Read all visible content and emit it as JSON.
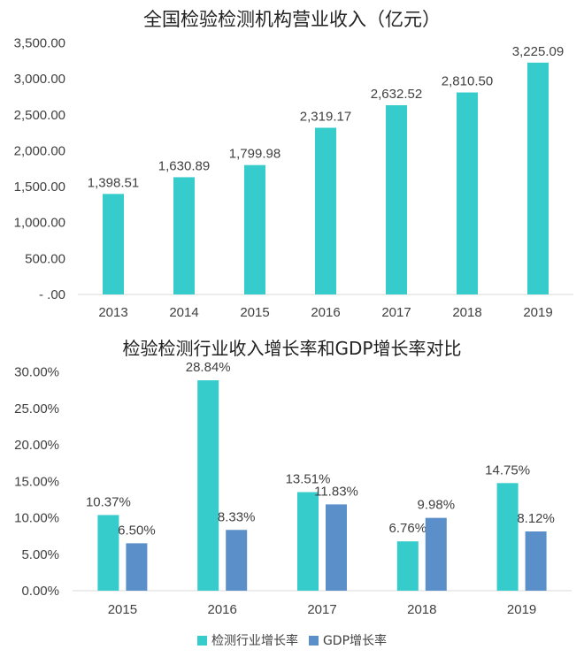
{
  "chart_data": [
    {
      "type": "bar",
      "title": "全国检验检测机构营业收入（亿元）",
      "categories": [
        "2013",
        "2014",
        "2015",
        "2016",
        "2017",
        "2018",
        "2019"
      ],
      "values": [
        1398.51,
        1630.89,
        1799.98,
        2319.17,
        2632.52,
        2810.5,
        3225.09
      ],
      "value_labels": [
        "1,398.51",
        "1,630.89",
        "1,799.98",
        "2,319.17",
        "2,632.52",
        "2,810.50",
        "3,225.09"
      ],
      "ylim": [
        0,
        3500
      ],
      "yticks": [
        0,
        500,
        1000,
        1500,
        2000,
        2500,
        3000,
        3500
      ],
      "ytick_labels": [
        "- .00",
        "500.00",
        "1,000.00",
        "1,500.00",
        "2,000.00",
        "2,500.00",
        "3,000.00",
        "3,500.00"
      ],
      "grid": false,
      "color": "#36CCCB"
    },
    {
      "type": "bar",
      "title": "检验检测行业收入增长率和GDP增长率对比",
      "categories": [
        "2015",
        "2016",
        "2017",
        "2018",
        "2019"
      ],
      "series": [
        {
          "name": "检测行业增长率",
          "color": "#36CCCB",
          "values": [
            10.37,
            28.84,
            13.51,
            6.76,
            14.75
          ],
          "value_labels": [
            "10.37%",
            "28.84%",
            "13.51%",
            "6.76%",
            "14.75%"
          ]
        },
        {
          "name": "GDP增长率",
          "color": "#5B8FC9",
          "values": [
            6.5,
            8.33,
            11.83,
            9.98,
            8.12
          ],
          "value_labels": [
            "6.50%",
            "8.33%",
            "11.83%",
            "9.98%",
            "8.12%"
          ]
        }
      ],
      "ylim": [
        0,
        30
      ],
      "yticks": [
        0,
        5,
        10,
        15,
        20,
        25,
        30
      ],
      "ytick_labels": [
        "0.00%",
        "5.00%",
        "10.00%",
        "15.00%",
        "20.00%",
        "25.00%",
        "30.00%"
      ],
      "grid": false,
      "legend": "bottom"
    }
  ]
}
